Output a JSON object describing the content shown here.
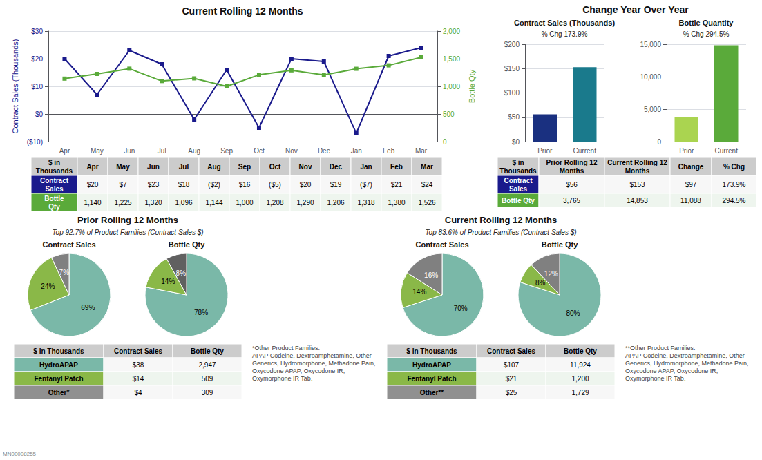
{
  "chart_data": [
    {
      "type": "line",
      "title": "Current Rolling 12 Months",
      "categories": [
        "Apr",
        "May",
        "Jun",
        "Jul",
        "Aug",
        "Sep",
        "Oct",
        "Nov",
        "Dec",
        "Jan",
        "Feb",
        "Mar"
      ],
      "ylabel": "Contract Sales (Thousands)",
      "y2label": "Bottle Qty",
      "ylim": [
        -10,
        30
      ],
      "yticks": [
        {
          "value": -10,
          "label": "($10)"
        },
        {
          "value": 0,
          "label": "$0"
        },
        {
          "value": 10,
          "label": "$10"
        },
        {
          "value": 20,
          "label": "$20"
        },
        {
          "value": 30,
          "label": "$30"
        }
      ],
      "y2lim": [
        0,
        2000
      ],
      "y2ticks": [
        0,
        500,
        {
          "value": 1000,
          "label": "1,000"
        },
        {
          "value": 1500,
          "label": "1,500"
        },
        {
          "value": 2000,
          "label": "2,000"
        }
      ],
      "grid": true,
      "series": [
        {
          "color": "#1a1a8c",
          "marker": "square",
          "values": [
            20,
            7,
            23,
            18,
            -2,
            16,
            -5,
            20,
            19,
            -7,
            21,
            24
          ]
        },
        {
          "color": "#5aaa3a",
          "marker": "square",
          "axis": "y2",
          "values": [
            1140,
            1225,
            1320,
            1096,
            1144,
            1000,
            1208,
            1290,
            1206,
            1318,
            1380,
            1526
          ]
        }
      ]
    },
    {
      "type": "table",
      "columns": [
        "$ in\nThousands",
        "Apr",
        "May",
        "Jun",
        "Jul",
        "Aug",
        "Sep",
        "Oct",
        "Nov",
        "Dec",
        "Jan",
        "Feb",
        "Mar"
      ],
      "rows": [
        [
          "Contract\nSales",
          "$20",
          "$7",
          "$23",
          "$18",
          "($2)",
          "$16",
          "($5)",
          "$20",
          "$19",
          "($7)",
          "$21",
          "$24"
        ],
        [
          "Bottle\nQty",
          "1,140",
          "1,225",
          "1,320",
          "1,096",
          "1,144",
          "1,000",
          "1,208",
          "1,290",
          "1,206",
          "1,318",
          "1,380",
          "1,526"
        ]
      ],
      "colors": [
        "#1a1a8c",
        "#5aaa3a"
      ]
    },
    {
      "type": "bar",
      "title": "Contract Sales (Thousands)",
      "subtitle": "% Chg 173.9%",
      "annotations": [
        "Change Year Over Year"
      ],
      "categories": [
        "Prior",
        "Current"
      ],
      "values": [
        56,
        153
      ],
      "colors": [
        "#1a3080",
        "#1a7a8c"
      ],
      "ylim": [
        0,
        200
      ],
      "yticks": [
        {
          "value": 0,
          "label": "$0"
        },
        {
          "value": 50,
          "label": "$50"
        },
        {
          "value": 100,
          "label": "$100"
        },
        {
          "value": 150,
          "label": "$150"
        },
        {
          "value": 200,
          "label": "$200"
        }
      ],
      "grid": true
    },
    {
      "type": "bar",
      "title": "Bottle Quantity",
      "subtitle": "% Chg 294.5%",
      "categories": [
        "Prior",
        "Current"
      ],
      "values": [
        3765,
        14853
      ],
      "colors": [
        "#aad450",
        "#5aaa3a"
      ],
      "ylim": [
        0,
        15000
      ],
      "yticks": [
        0,
        {
          "value": 5000,
          "label": "5,000"
        },
        {
          "value": 10000,
          "label": "10,000"
        },
        {
          "value": 15000,
          "label": "15,000"
        }
      ],
      "grid": true
    },
    {
      "type": "table",
      "columns": [
        "$ in\nThousands",
        "Prior Rolling 12\nMonths",
        "Current Rolling 12\nMonths",
        "Change",
        "% Chg"
      ],
      "rows": [
        [
          "Contract\nSales",
          "$56",
          "$153",
          "$97",
          "173.9%"
        ],
        [
          "Bottle Qty",
          "3,765",
          "14,853",
          "11,088",
          "294.5%"
        ]
      ],
      "colors": [
        "#1a1a8c",
        "#5aaa3a"
      ]
    },
    {
      "type": "pie",
      "title": "Contract Sales",
      "values": [
        69,
        24,
        7
      ],
      "value_labels": [
        "69%",
        "24%",
        "7%"
      ],
      "colors": [
        "#7ab8a8",
        "#8ab848",
        "#808080"
      ],
      "data_labels": true
    },
    {
      "type": "pie",
      "title": "Bottle Qty",
      "values": [
        78,
        14,
        8
      ],
      "value_labels": [
        "78%",
        "14%",
        "8%"
      ],
      "colors": [
        "#7ab8a8",
        "#8ab848",
        "#606060"
      ],
      "data_labels": true
    },
    {
      "type": "pie",
      "title": "Contract Sales",
      "values": [
        70,
        14,
        16
      ],
      "value_labels": [
        "70%",
        "14%",
        "16%"
      ],
      "colors": [
        "#7ab8a8",
        "#8ab848",
        "#808080"
      ],
      "data_labels": true
    },
    {
      "type": "pie",
      "title": "Bottle Qty",
      "values": [
        80,
        8,
        12
      ],
      "value_labels": [
        "80%",
        "8%",
        "12%"
      ],
      "colors": [
        "#7ab8a8",
        "#8ab848",
        "#808080"
      ],
      "data_labels": true
    },
    {
      "type": "table",
      "title": "Prior Rolling 12 Months",
      "subtitle": "Top 92.7% of Product Families (Contract Sales $)",
      "columns": [
        "$ in Thousands",
        "Contract Sales",
        "Bottle Qty"
      ],
      "rows": [
        [
          "HydroAPAP",
          "$38",
          "2,947"
        ],
        [
          "Fentanyl Patch",
          "$14",
          "509"
        ],
        [
          "Other*",
          "$4",
          "309"
        ]
      ],
      "colors": [
        "#7ab8a8",
        "#8ab848",
        "#909090"
      ],
      "annotations": [
        "*Other Product Families:\nAPAP Codeine, Dextroamphetamine, Other\nGenerics, Hydromorphone, Methadone Pain,\nOxycodone APAP, Oxycodone IR,\nOxymorphone IR Tab."
      ]
    },
    {
      "type": "table",
      "title": "Current Rolling 12 Months",
      "subtitle": "Top 83.6% of Product Families (Contract Sales $)",
      "columns": [
        "$ in Thousands",
        "Contract Sales",
        "Bottle Qty"
      ],
      "rows": [
        [
          "HydroAPAP",
          "$107",
          "11,924"
        ],
        [
          "Fentanyl Patch",
          "$21",
          "1,200"
        ],
        [
          "Other**",
          "$25",
          "1,729"
        ]
      ],
      "colors": [
        "#7ab8a8",
        "#8ab848",
        "#909090"
      ],
      "annotations": [
        "**Other Product Families:\nAPAP Codeine, Dextroamphetamine, Other\nGenerics, Hydromorphone, Methadone Pain,\nOxycodone APAP, Oxycodone IR,\nOxymorphone IR Tab."
      ]
    }
  ],
  "annotations": [
    "MN00008255"
  ]
}
